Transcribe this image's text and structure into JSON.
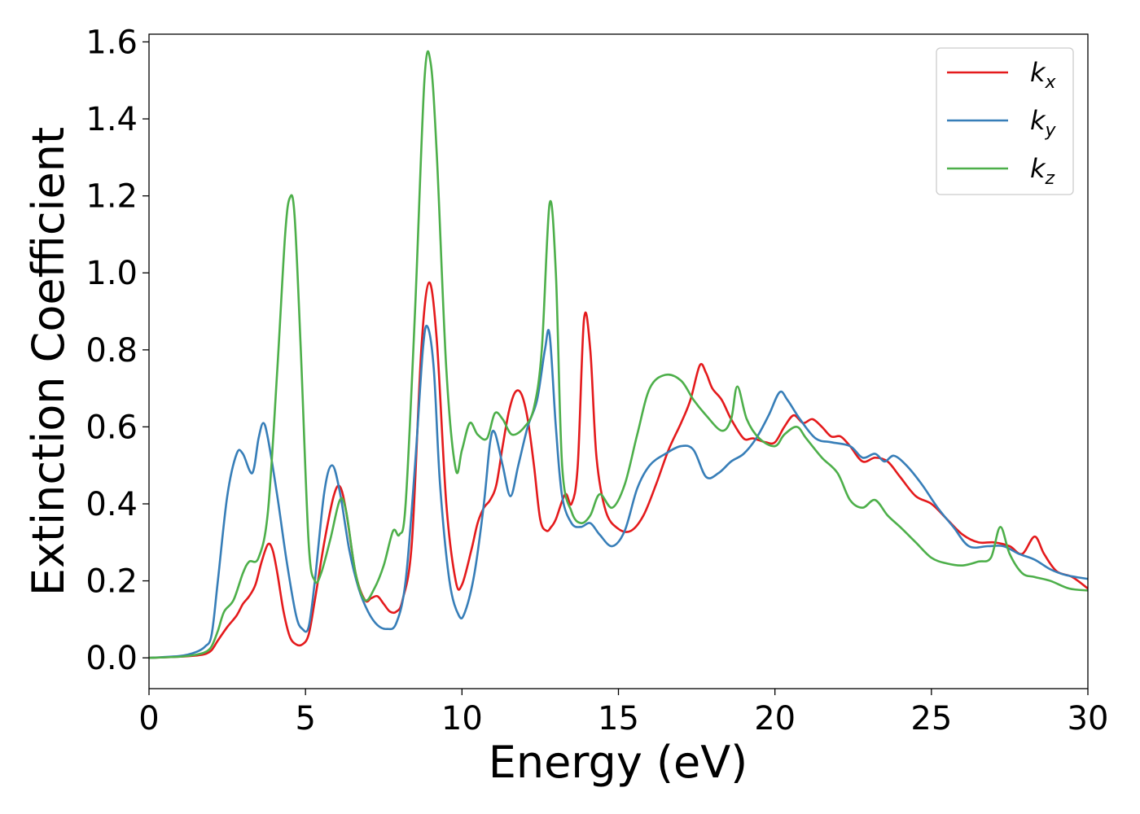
{
  "chart_data": {
    "type": "line",
    "xlabel": "Energy (eV)",
    "ylabel": "Extinction Coefficient",
    "xlim": [
      0,
      30
    ],
    "ylim": [
      -0.08,
      1.62
    ],
    "xticks": [
      "0",
      "5",
      "10",
      "15",
      "20",
      "25",
      "30"
    ],
    "yticks": [
      "0.0",
      "0.2",
      "0.4",
      "0.6",
      "0.8",
      "1.0",
      "1.2",
      "1.4",
      "1.6"
    ],
    "legend_position": "top-right",
    "grid": false,
    "series": [
      {
        "name": "k",
        "subscript": "x",
        "color": "#e41a1c",
        "points": [
          [
            0,
            0
          ],
          [
            1,
            0.003
          ],
          [
            1.5,
            0.006
          ],
          [
            1.8,
            0.01
          ],
          [
            2.0,
            0.02
          ],
          [
            2.2,
            0.045
          ],
          [
            2.5,
            0.08
          ],
          [
            2.8,
            0.11
          ],
          [
            3.0,
            0.14
          ],
          [
            3.2,
            0.16
          ],
          [
            3.4,
            0.19
          ],
          [
            3.6,
            0.25
          ],
          [
            3.8,
            0.295
          ],
          [
            3.95,
            0.28
          ],
          [
            4.1,
            0.22
          ],
          [
            4.3,
            0.12
          ],
          [
            4.5,
            0.055
          ],
          [
            4.7,
            0.035
          ],
          [
            4.9,
            0.035
          ],
          [
            5.1,
            0.06
          ],
          [
            5.3,
            0.15
          ],
          [
            5.6,
            0.3
          ],
          [
            5.9,
            0.42
          ],
          [
            6.1,
            0.445
          ],
          [
            6.3,
            0.38
          ],
          [
            6.6,
            0.22
          ],
          [
            6.9,
            0.15
          ],
          [
            7.1,
            0.155
          ],
          [
            7.3,
            0.16
          ],
          [
            7.5,
            0.14
          ],
          [
            7.7,
            0.12
          ],
          [
            7.9,
            0.12
          ],
          [
            8.1,
            0.15
          ],
          [
            8.4,
            0.3
          ],
          [
            8.7,
            0.8
          ],
          [
            8.95,
            0.975
          ],
          [
            9.2,
            0.82
          ],
          [
            9.5,
            0.4
          ],
          [
            9.8,
            0.2
          ],
          [
            10.0,
            0.19
          ],
          [
            10.3,
            0.28
          ],
          [
            10.5,
            0.35
          ],
          [
            10.7,
            0.39
          ],
          [
            10.9,
            0.41
          ],
          [
            11.1,
            0.45
          ],
          [
            11.3,
            0.55
          ],
          [
            11.5,
            0.64
          ],
          [
            11.7,
            0.69
          ],
          [
            11.9,
            0.685
          ],
          [
            12.1,
            0.62
          ],
          [
            12.3,
            0.5
          ],
          [
            12.5,
            0.36
          ],
          [
            12.7,
            0.33
          ],
          [
            12.85,
            0.34
          ],
          [
            13.0,
            0.36
          ],
          [
            13.3,
            0.425
          ],
          [
            13.5,
            0.4
          ],
          [
            13.7,
            0.5
          ],
          [
            13.9,
            0.88
          ],
          [
            14.1,
            0.8
          ],
          [
            14.3,
            0.52
          ],
          [
            14.6,
            0.38
          ],
          [
            15.0,
            0.335
          ],
          [
            15.4,
            0.33
          ],
          [
            15.8,
            0.37
          ],
          [
            16.2,
            0.45
          ],
          [
            16.6,
            0.54
          ],
          [
            17.0,
            0.61
          ],
          [
            17.3,
            0.67
          ],
          [
            17.6,
            0.76
          ],
          [
            17.8,
            0.74
          ],
          [
            18.0,
            0.7
          ],
          [
            18.3,
            0.67
          ],
          [
            18.6,
            0.62
          ],
          [
            19.0,
            0.57
          ],
          [
            19.3,
            0.57
          ],
          [
            19.7,
            0.56
          ],
          [
            20.0,
            0.56
          ],
          [
            20.3,
            0.6
          ],
          [
            20.6,
            0.63
          ],
          [
            20.9,
            0.61
          ],
          [
            21.2,
            0.62
          ],
          [
            21.5,
            0.6
          ],
          [
            21.8,
            0.575
          ],
          [
            22.1,
            0.575
          ],
          [
            22.4,
            0.55
          ],
          [
            22.8,
            0.51
          ],
          [
            23.2,
            0.52
          ],
          [
            23.6,
            0.51
          ],
          [
            24.0,
            0.47
          ],
          [
            24.5,
            0.42
          ],
          [
            25.0,
            0.4
          ],
          [
            25.5,
            0.36
          ],
          [
            26.0,
            0.32
          ],
          [
            26.5,
            0.3
          ],
          [
            27.0,
            0.3
          ],
          [
            27.5,
            0.29
          ],
          [
            27.9,
            0.27
          ],
          [
            28.3,
            0.315
          ],
          [
            28.6,
            0.27
          ],
          [
            29.0,
            0.225
          ],
          [
            29.5,
            0.21
          ],
          [
            30,
            0.18
          ]
        ]
      },
      {
        "name": "k",
        "subscript": "y",
        "color": "#377eb8",
        "points": [
          [
            0,
            0
          ],
          [
            1,
            0.005
          ],
          [
            1.5,
            0.015
          ],
          [
            1.8,
            0.03
          ],
          [
            2.0,
            0.06
          ],
          [
            2.2,
            0.2
          ],
          [
            2.5,
            0.42
          ],
          [
            2.8,
            0.53
          ],
          [
            3.0,
            0.53
          ],
          [
            3.3,
            0.48
          ],
          [
            3.5,
            0.57
          ],
          [
            3.65,
            0.61
          ],
          [
            3.8,
            0.57
          ],
          [
            4.1,
            0.42
          ],
          [
            4.4,
            0.25
          ],
          [
            4.7,
            0.11
          ],
          [
            4.9,
            0.075
          ],
          [
            5.1,
            0.08
          ],
          [
            5.3,
            0.2
          ],
          [
            5.6,
            0.43
          ],
          [
            5.85,
            0.5
          ],
          [
            6.1,
            0.43
          ],
          [
            6.4,
            0.28
          ],
          [
            6.7,
            0.18
          ],
          [
            7.0,
            0.12
          ],
          [
            7.3,
            0.085
          ],
          [
            7.6,
            0.075
          ],
          [
            7.9,
            0.09
          ],
          [
            8.2,
            0.2
          ],
          [
            8.5,
            0.5
          ],
          [
            8.75,
            0.8
          ],
          [
            8.9,
            0.86
          ],
          [
            9.1,
            0.75
          ],
          [
            9.3,
            0.45
          ],
          [
            9.6,
            0.2
          ],
          [
            9.9,
            0.11
          ],
          [
            10.1,
            0.12
          ],
          [
            10.4,
            0.22
          ],
          [
            10.7,
            0.4
          ],
          [
            10.9,
            0.56
          ],
          [
            11.05,
            0.585
          ],
          [
            11.3,
            0.5
          ],
          [
            11.55,
            0.42
          ],
          [
            11.8,
            0.5
          ],
          [
            12.1,
            0.6
          ],
          [
            12.4,
            0.67
          ],
          [
            12.65,
            0.8
          ],
          [
            12.8,
            0.84
          ],
          [
            13.0,
            0.6
          ],
          [
            13.2,
            0.42
          ],
          [
            13.5,
            0.35
          ],
          [
            13.8,
            0.34
          ],
          [
            14.1,
            0.35
          ],
          [
            14.4,
            0.32
          ],
          [
            14.8,
            0.29
          ],
          [
            15.2,
            0.33
          ],
          [
            15.6,
            0.44
          ],
          [
            16.0,
            0.5
          ],
          [
            16.5,
            0.53
          ],
          [
            17.0,
            0.55
          ],
          [
            17.4,
            0.54
          ],
          [
            17.8,
            0.47
          ],
          [
            18.2,
            0.48
          ],
          [
            18.6,
            0.51
          ],
          [
            19.0,
            0.53
          ],
          [
            19.4,
            0.57
          ],
          [
            19.8,
            0.63
          ],
          [
            20.15,
            0.69
          ],
          [
            20.4,
            0.67
          ],
          [
            20.8,
            0.62
          ],
          [
            21.3,
            0.57
          ],
          [
            21.8,
            0.56
          ],
          [
            22.4,
            0.55
          ],
          [
            22.8,
            0.52
          ],
          [
            23.2,
            0.53
          ],
          [
            23.5,
            0.51
          ],
          [
            23.8,
            0.525
          ],
          [
            24.2,
            0.5
          ],
          [
            24.7,
            0.45
          ],
          [
            25.2,
            0.39
          ],
          [
            25.7,
            0.34
          ],
          [
            26.2,
            0.29
          ],
          [
            26.8,
            0.29
          ],
          [
            27.3,
            0.29
          ],
          [
            27.8,
            0.27
          ],
          [
            28.3,
            0.255
          ],
          [
            28.8,
            0.23
          ],
          [
            29.3,
            0.215
          ],
          [
            30,
            0.205
          ]
        ]
      },
      {
        "name": "k",
        "subscript": "z",
        "color": "#4daf4a",
        "points": [
          [
            0,
            0
          ],
          [
            1,
            0.003
          ],
          [
            1.5,
            0.008
          ],
          [
            1.8,
            0.015
          ],
          [
            2.0,
            0.03
          ],
          [
            2.2,
            0.07
          ],
          [
            2.4,
            0.12
          ],
          [
            2.7,
            0.15
          ],
          [
            3.0,
            0.22
          ],
          [
            3.2,
            0.25
          ],
          [
            3.5,
            0.26
          ],
          [
            3.8,
            0.38
          ],
          [
            4.1,
            0.75
          ],
          [
            4.35,
            1.1
          ],
          [
            4.5,
            1.195
          ],
          [
            4.65,
            1.15
          ],
          [
            4.85,
            0.8
          ],
          [
            5.1,
            0.3
          ],
          [
            5.3,
            0.2
          ],
          [
            5.5,
            0.22
          ],
          [
            5.8,
            0.31
          ],
          [
            6.1,
            0.41
          ],
          [
            6.3,
            0.38
          ],
          [
            6.6,
            0.22
          ],
          [
            6.9,
            0.15
          ],
          [
            7.2,
            0.18
          ],
          [
            7.5,
            0.24
          ],
          [
            7.8,
            0.33
          ],
          [
            8.0,
            0.32
          ],
          [
            8.2,
            0.4
          ],
          [
            8.5,
            0.9
          ],
          [
            8.8,
            1.5
          ],
          [
            9.0,
            1.545
          ],
          [
            9.2,
            1.3
          ],
          [
            9.5,
            0.75
          ],
          [
            9.8,
            0.49
          ],
          [
            10.0,
            0.54
          ],
          [
            10.25,
            0.61
          ],
          [
            10.5,
            0.58
          ],
          [
            10.8,
            0.57
          ],
          [
            11.05,
            0.635
          ],
          [
            11.3,
            0.62
          ],
          [
            11.6,
            0.58
          ],
          [
            12.0,
            0.6
          ],
          [
            12.3,
            0.65
          ],
          [
            12.55,
            0.8
          ],
          [
            12.8,
            1.18
          ],
          [
            13.0,
            1.0
          ],
          [
            13.2,
            0.5
          ],
          [
            13.5,
            0.38
          ],
          [
            13.8,
            0.35
          ],
          [
            14.1,
            0.37
          ],
          [
            14.4,
            0.425
          ],
          [
            14.8,
            0.39
          ],
          [
            15.2,
            0.45
          ],
          [
            15.6,
            0.58
          ],
          [
            16.0,
            0.7
          ],
          [
            16.5,
            0.735
          ],
          [
            17.0,
            0.72
          ],
          [
            17.4,
            0.67
          ],
          [
            17.8,
            0.63
          ],
          [
            18.3,
            0.59
          ],
          [
            18.6,
            0.62
          ],
          [
            18.8,
            0.705
          ],
          [
            19.1,
            0.62
          ],
          [
            19.5,
            0.57
          ],
          [
            20.0,
            0.55
          ],
          [
            20.3,
            0.58
          ],
          [
            20.7,
            0.6
          ],
          [
            21.0,
            0.57
          ],
          [
            21.5,
            0.52
          ],
          [
            22.0,
            0.48
          ],
          [
            22.4,
            0.41
          ],
          [
            22.8,
            0.39
          ],
          [
            23.2,
            0.41
          ],
          [
            23.6,
            0.37
          ],
          [
            24.0,
            0.34
          ],
          [
            24.5,
            0.3
          ],
          [
            25.0,
            0.26
          ],
          [
            25.5,
            0.245
          ],
          [
            26.0,
            0.24
          ],
          [
            26.5,
            0.25
          ],
          [
            26.9,
            0.26
          ],
          [
            27.2,
            0.34
          ],
          [
            27.5,
            0.27
          ],
          [
            27.9,
            0.22
          ],
          [
            28.3,
            0.21
          ],
          [
            28.8,
            0.2
          ],
          [
            29.4,
            0.18
          ],
          [
            30,
            0.175
          ]
        ]
      }
    ]
  }
}
